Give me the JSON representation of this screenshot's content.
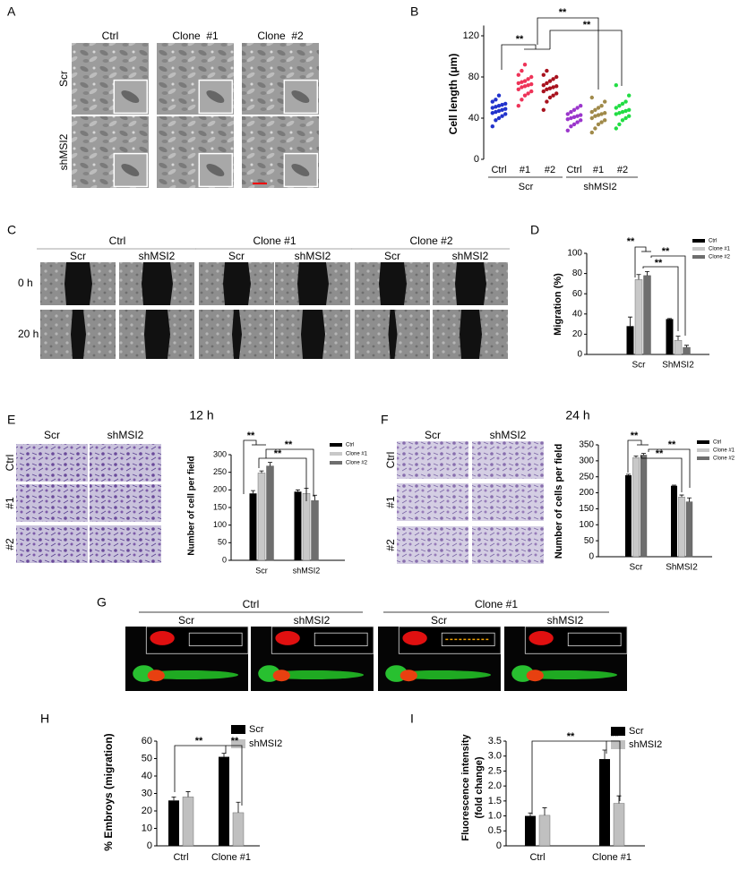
{
  "panel_labels": [
    "A",
    "B",
    "C",
    "D",
    "E",
    "F",
    "G",
    "H",
    "I"
  ],
  "panel_A": {
    "columns": [
      "Ctrl",
      "Clone  #1",
      "Clone  #2"
    ],
    "rows": [
      "Scr",
      "shMSI2"
    ]
  },
  "panel_C": {
    "groups": [
      "Ctrl",
      "Clone #1",
      "Clone #2"
    ],
    "columns": [
      "Scr",
      "shMSI2"
    ],
    "rows": [
      "0 h",
      "20 h"
    ]
  },
  "panel_E": {
    "title": "12 h",
    "columns": [
      "Scr",
      "shMSI2"
    ],
    "rows": [
      "Ctrl",
      "#1",
      "#2"
    ]
  },
  "panel_F": {
    "title": "24 h",
    "columns": [
      "Scr",
      "shMSI2"
    ],
    "rows": [
      "Ctrl",
      "#1",
      "#2"
    ]
  },
  "panel_G": {
    "groups": [
      "Ctrl",
      "Clone #1"
    ],
    "columns": [
      "Scr",
      "shMSI2"
    ]
  },
  "chart_data": [
    {
      "type": "strip",
      "ylabel": "Cell length (μm)",
      "categories": [
        "Ctrl",
        "#1",
        "#2",
        "Ctrl",
        "#1",
        "#2"
      ],
      "groups": [
        "Scr",
        "shMSI2"
      ],
      "colors": [
        "#2233cc",
        "#ee3358",
        "#a8121e",
        "#9b36cc",
        "#a08a4a",
        "#22dd44"
      ],
      "values": [
        [
          32,
          38,
          40,
          42,
          44,
          45,
          46,
          47,
          48,
          49,
          50,
          51,
          52,
          53,
          54,
          56,
          58,
          62
        ],
        [
          52,
          58,
          62,
          64,
          66,
          68,
          70,
          71,
          72,
          73,
          74,
          75,
          76,
          78,
          80,
          82,
          86,
          92
        ],
        [
          48,
          56,
          60,
          62,
          64,
          66,
          68,
          69,
          70,
          71,
          72,
          74,
          76,
          78,
          80,
          82,
          86
        ],
        [
          28,
          32,
          34,
          36,
          38,
          39,
          40,
          41,
          42,
          43,
          44,
          46,
          48,
          50,
          52
        ],
        [
          26,
          30,
          34,
          36,
          38,
          40,
          42,
          43,
          44,
          45,
          46,
          48,
          50,
          52,
          56,
          60
        ],
        [
          30,
          34,
          38,
          40,
          42,
          44,
          45,
          46,
          47,
          48,
          50,
          52,
          54,
          56,
          62,
          72
        ]
      ],
      "ylim": [
        0,
        130
      ],
      "yticks": [
        0,
        40,
        80,
        120
      ],
      "annotations": [
        "**",
        "**",
        "**"
      ]
    },
    {
      "type": "bar",
      "ylabel": "Migration (%)",
      "categories": [
        "Scr",
        "ShMSI2"
      ],
      "legend": "upper right",
      "series": [
        {
          "name": "Ctrl",
          "color": "#000000",
          "values": [
            28,
            35
          ],
          "errors": [
            9,
            0.5
          ]
        },
        {
          "name": "Clone #1",
          "color": "#c8c8c8",
          "values": [
            74,
            14
          ],
          "errors": [
            5,
            4
          ]
        },
        {
          "name": "Clone #2",
          "color": "#6e6e6e",
          "values": [
            78,
            7
          ],
          "errors": [
            4,
            2
          ]
        }
      ],
      "ylim": [
        0,
        100
      ],
      "yticks": [
        0,
        20,
        40,
        60,
        80,
        100
      ],
      "annotations": [
        "**",
        "**",
        "**"
      ]
    },
    {
      "type": "bar",
      "ylabel": "Number of cell per field",
      "categories": [
        "Scr",
        "shMSI2"
      ],
      "legend": "upper right",
      "series": [
        {
          "name": "Ctrl",
          "color": "#000000",
          "values": [
            190,
            195
          ],
          "errors": [
            8,
            5
          ]
        },
        {
          "name": "Clone #1",
          "color": "#c8c8c8",
          "values": [
            248,
            190
          ],
          "errors": [
            6,
            15
          ]
        },
        {
          "name": "Clone #2",
          "color": "#6e6e6e",
          "values": [
            268,
            170
          ],
          "errors": [
            10,
            15
          ]
        }
      ],
      "ylim": [
        0,
        300
      ],
      "yticks": [
        0,
        50,
        100,
        150,
        200,
        250,
        300
      ],
      "annotations": [
        "**",
        "**",
        "**"
      ]
    },
    {
      "type": "bar",
      "ylabel": "Number of cells per field",
      "categories": [
        "Scr",
        "ShMSI2"
      ],
      "legend": "upper right",
      "series": [
        {
          "name": "Ctrl",
          "color": "#000000",
          "values": [
            255,
            222
          ],
          "errors": [
            3,
            2
          ]
        },
        {
          "name": "Clone #1",
          "color": "#c8c8c8",
          "values": [
            310,
            187
          ],
          "errors": [
            5,
            6
          ]
        },
        {
          "name": "Clone #2",
          "color": "#6e6e6e",
          "values": [
            318,
            172
          ],
          "errors": [
            5,
            12
          ]
        }
      ],
      "ylim": [
        0,
        350
      ],
      "yticks": [
        0,
        50,
        100,
        150,
        200,
        250,
        300,
        350
      ],
      "annotations": [
        "**",
        "**",
        "**"
      ]
    },
    {
      "type": "bar",
      "ylabel": "% Embroys (migration)",
      "categories": [
        "Ctrl",
        "Clone #1"
      ],
      "legend": "upper right",
      "series": [
        {
          "name": "Scr",
          "color": "#000000",
          "values": [
            26,
            51
          ],
          "errors": [
            2,
            2
          ]
        },
        {
          "name": "shMSI2",
          "color": "#c0c0c0",
          "values": [
            28,
            19
          ],
          "errors": [
            3,
            6
          ]
        }
      ],
      "ylim": [
        0,
        60
      ],
      "yticks": [
        0,
        10,
        20,
        30,
        40,
        50,
        60
      ],
      "annotations": [
        "**",
        "**"
      ]
    },
    {
      "type": "bar",
      "ylabel": [
        "Fluorescence intensity",
        "(fold change)"
      ],
      "categories": [
        "Ctrl",
        "Clone #1"
      ],
      "legend": "upper right",
      "series": [
        {
          "name": "Scr",
          "color": "#000000",
          "values": [
            1.0,
            2.9
          ],
          "errors": [
            0.1,
            0.3
          ]
        },
        {
          "name": "shMSI2",
          "color": "#c0c0c0",
          "values": [
            1.02,
            1.42
          ],
          "errors": [
            0.25,
            0.25
          ]
        }
      ],
      "ylim": [
        0,
        3.5
      ],
      "yticks": [
        0,
        0.5,
        {
          "value": 1,
          "label": "1.0"
        },
        1.5,
        {
          "value": 2,
          "label": "2.0"
        },
        2.5,
        {
          "value": 3,
          "label": "3.0"
        },
        3.5
      ],
      "annotations": [
        "**",
        "**"
      ]
    }
  ]
}
